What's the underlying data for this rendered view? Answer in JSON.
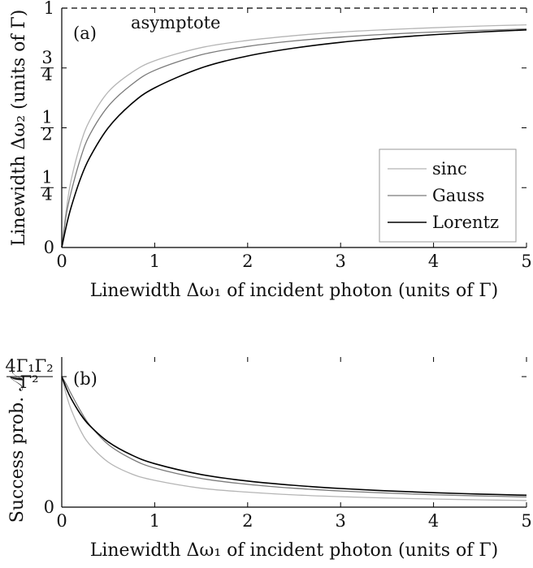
{
  "chart_data": [
    {
      "panel": "(a)",
      "type": "line",
      "xlabel": "Linewidth Δω₁ of incident photon (units of Γ)",
      "ylabel": "Linewidth Δω₂ (units of Γ)",
      "xlim": [
        0,
        5
      ],
      "ylim": [
        0,
        1
      ],
      "xticks": [
        "0",
        "1",
        "2",
        "3",
        "4",
        "5"
      ],
      "yticks": [
        {
          "value": 0,
          "label": "0"
        },
        {
          "value": 0.25,
          "label": "1/4"
        },
        {
          "value": 0.5,
          "label": "1/2"
        },
        {
          "value": 0.75,
          "label": "3/4"
        },
        {
          "value": 1,
          "label": "1"
        }
      ],
      "asymptote": {
        "y": 1,
        "label": "asymptote"
      },
      "legend": {
        "placement": "bottom-right"
      },
      "x": [
        0,
        0.05,
        0.1,
        0.2,
        0.3,
        0.5,
        0.75,
        1,
        1.5,
        2,
        2.5,
        3,
        3.5,
        4,
        4.5,
        5
      ],
      "series": [
        {
          "name": "sinc",
          "color": "#b5b5b5",
          "values": [
            0,
            0.16,
            0.28,
            0.43,
            0.53,
            0.65,
            0.73,
            0.78,
            0.835,
            0.865,
            0.885,
            0.9,
            0.91,
            0.918,
            0.925,
            0.93
          ]
        },
        {
          "name": "Gauss",
          "color": "#7a7a7a",
          "values": [
            0,
            0.14,
            0.23,
            0.37,
            0.47,
            0.59,
            0.68,
            0.74,
            0.805,
            0.84,
            0.863,
            0.879,
            0.891,
            0.9,
            0.907,
            0.913
          ]
        },
        {
          "name": "Lorentz",
          "color": "#000000",
          "values": [
            0,
            0.091,
            0.167,
            0.286,
            0.375,
            0.5,
            0.6,
            0.667,
            0.75,
            0.8,
            0.833,
            0.857,
            0.875,
            0.889,
            0.9,
            0.909
          ]
        }
      ]
    },
    {
      "panel": "(b)",
      "type": "line",
      "xlabel": "Linewidth Δω₁ of incident photon (units of Γ)",
      "ylabel": "Success prob. 𝒩",
      "xlim": [
        0,
        5
      ],
      "ylim": [
        0,
        1.15
      ],
      "xticks": [
        "0",
        "1",
        "2",
        "3",
        "4",
        "5"
      ],
      "yticks": [
        {
          "value": 0,
          "label": "0"
        },
        {
          "value": 1,
          "label": "4Γ₁Γ₂/Γ²"
        }
      ],
      "x": [
        0,
        0.05,
        0.1,
        0.2,
        0.3,
        0.5,
        0.75,
        1,
        1.5,
        2,
        2.5,
        3,
        3.5,
        4,
        4.5,
        5
      ],
      "series": [
        {
          "name": "sinc",
          "color": "#b5b5b5",
          "values": [
            1,
            0.86,
            0.75,
            0.59,
            0.48,
            0.345,
            0.255,
            0.205,
            0.145,
            0.115,
            0.094,
            0.08,
            0.07,
            0.062,
            0.056,
            0.051
          ]
        },
        {
          "name": "Gauss",
          "color": "#7a7a7a",
          "values": [
            1,
            0.94,
            0.87,
            0.74,
            0.63,
            0.48,
            0.37,
            0.3,
            0.22,
            0.175,
            0.145,
            0.124,
            0.108,
            0.095,
            0.086,
            0.078
          ]
        },
        {
          "name": "Lorentz",
          "color": "#000000",
          "values": [
            1,
            0.909,
            0.833,
            0.714,
            0.625,
            0.5,
            0.4,
            0.333,
            0.25,
            0.2,
            0.167,
            0.143,
            0.125,
            0.111,
            0.1,
            0.091
          ]
        }
      ]
    }
  ]
}
